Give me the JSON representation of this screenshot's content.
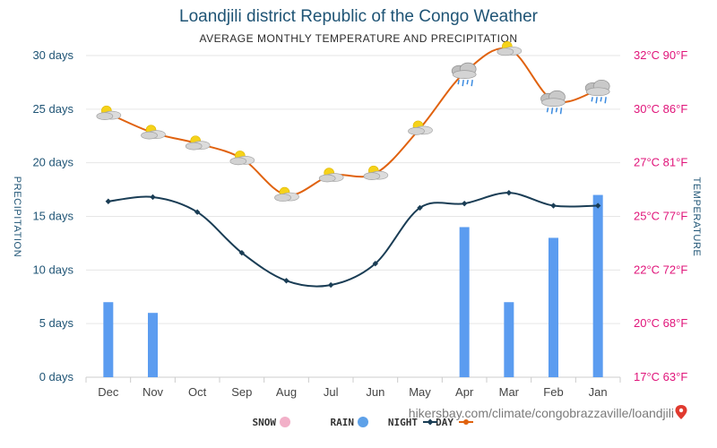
{
  "title": "Loandjili district Republic of the Congo Weather",
  "subtitle": "AVERAGE MONTHLY TEMPERATURE AND PRECIPITATION",
  "left_axis_label": "PRECIPITATION",
  "right_axis_label": "TEMPERATURE",
  "credit": "hikersbay.com/climate/congobrazzaville/loandjili",
  "legend": [
    {
      "label": "DAY",
      "color": "#e0620f"
    },
    {
      "label": "NIGHT",
      "color": "#1a3d55"
    },
    {
      "label": "RAIN",
      "color": "#5ea1e8"
    },
    {
      "label": "SNOW",
      "color": "#f2b0c8"
    }
  ],
  "colors": {
    "day": "#e0620f",
    "night": "#1a3d55",
    "rain": "#5b9cf0",
    "grid": "#e6e6e6",
    "left_ticks": "#1f5475",
    "right_ticks": "#e0147a"
  },
  "chart_data": {
    "type": "line",
    "mirrored": true,
    "categories": [
      "Jan",
      "Feb",
      "Mar",
      "Apr",
      "May",
      "Jun",
      "Jul",
      "Aug",
      "Sep",
      "Oct",
      "Nov",
      "Dec"
    ],
    "series": [
      {
        "name": "DAY",
        "axis": "temperature",
        "values": [
          30.4,
          29.9,
          32.3,
          31.2,
          28.6,
          26.5,
          26.4,
          25.5,
          27.2,
          27.9,
          28.4,
          29.3
        ],
        "weather_icons": [
          "cloud-rain",
          "cloud-rain",
          "sun-cloud",
          "cloud-rain",
          "sun-cloud",
          "sun-cloud",
          "sun-cloud",
          "sun-cloud",
          "sun-cloud",
          "sun-cloud",
          "sun-cloud",
          "sun-cloud"
        ]
      },
      {
        "name": "NIGHT",
        "axis": "temperature",
        "values": [
          25.0,
          25.0,
          25.6,
          25.1,
          24.9,
          22.3,
          21.3,
          21.5,
          22.8,
          24.7,
          25.4,
          25.2
        ]
      },
      {
        "name": "RAIN",
        "axis": "precipitation",
        "type": "bar",
        "values": [
          17,
          13,
          7,
          14,
          0,
          0,
          0,
          0,
          0,
          0,
          6,
          7
        ]
      },
      {
        "name": "SNOW",
        "axis": "precipitation",
        "type": "bar",
        "values": [
          0,
          0,
          0,
          0,
          0,
          0,
          0,
          0,
          0,
          0,
          0,
          0
        ]
      }
    ],
    "left_axis": {
      "ticks": [
        "0 days",
        "5 days",
        "10 days",
        "15 days",
        "20 days",
        "25 days",
        "30 days"
      ],
      "ylim": [
        0,
        30
      ]
    },
    "right_axis": {
      "ticks": [
        "17°C 63°F",
        "20°C 68°F",
        "22°C 72°F",
        "25°C 77°F",
        "27°C 81°F",
        "30°C 86°F",
        "32°C 90°F"
      ],
      "ylim": [
        17,
        32
      ]
    },
    "grid": true,
    "legend_position": "bottom"
  }
}
